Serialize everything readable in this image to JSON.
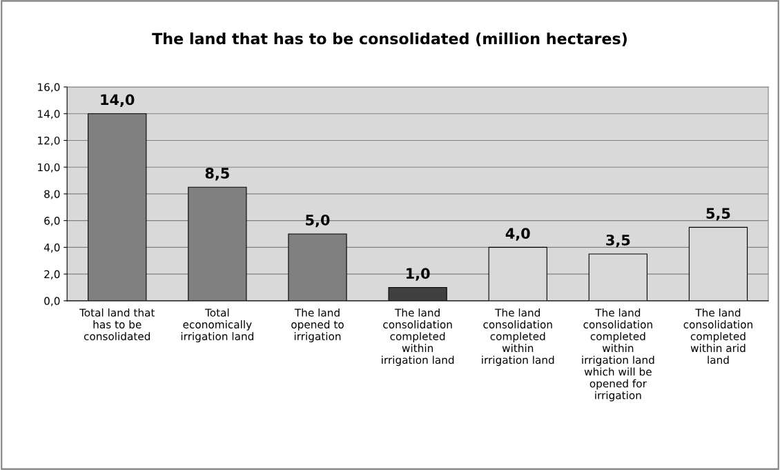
{
  "chart_data": {
    "type": "bar",
    "title": "The land that has to be consolidated (million hectares)",
    "categories": [
      "Total land that\nhas to be\nconsolidated",
      "Total\neconomically\nirrigation land",
      "The land\nopened to\nirrigation",
      "The land\nconsolidation\ncompleted\nwithin\nirrigation land",
      "The land\nconsolidation\ncompleted\nwithin\nirrigation land",
      "The land\nconsolidation\ncompleted\nwithin\nirrigation land\nwhich will be\nopened for\nirrigation",
      "The land\nconsolidation\ncompleted\nwithin arid\nland"
    ],
    "values": [
      14.0,
      8.5,
      5.0,
      1.0,
      4.0,
      3.5,
      5.5
    ],
    "colors": [
      "#808080",
      "#808080",
      "#808080",
      "#404040",
      "#d9d9d9",
      "#d9d9d9",
      "#d9d9d9"
    ],
    "value_labels": [
      "14,0",
      "8,5",
      "5,0",
      "1,0",
      "4,0",
      "3,5",
      "5,5"
    ],
    "ylim": [
      0,
      16
    ],
    "yticks": [
      {
        "value": 0,
        "label": "0,0"
      },
      {
        "value": 2,
        "label": "2,0"
      },
      {
        "value": 4,
        "label": "4,0"
      },
      {
        "value": 6,
        "label": "6,0"
      },
      {
        "value": 8,
        "label": "8,0"
      },
      {
        "value": 10,
        "label": "10,0"
      },
      {
        "value": 12,
        "label": "12,0"
      },
      {
        "value": 14,
        "label": "14,0"
      },
      {
        "value": 16,
        "label": "16,0"
      }
    ],
    "grid": "y",
    "legend": false
  }
}
